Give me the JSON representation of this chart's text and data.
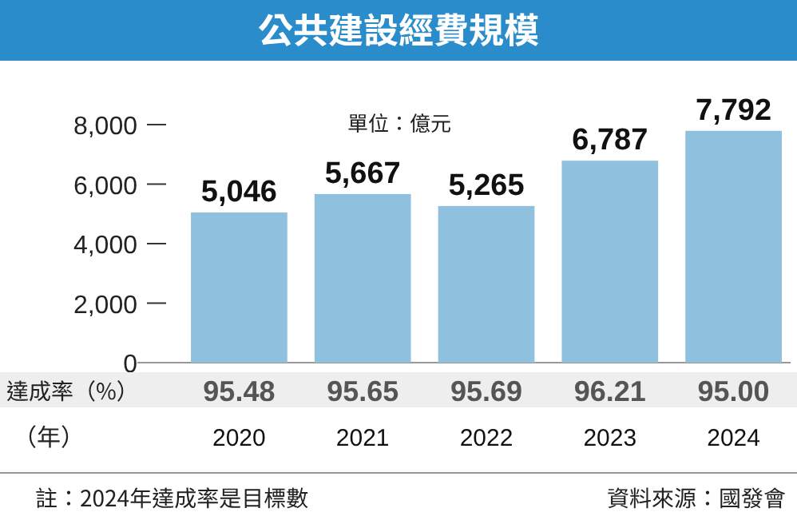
{
  "chart_data": {
    "type": "bar",
    "title": "公共建設經費規模",
    "subtitle": "單位：億元",
    "xlabel": "（年）",
    "categories": [
      "2020",
      "2021",
      "2022",
      "2023",
      "2024"
    ],
    "values": [
      5046,
      5667,
      5265,
      6787,
      7792
    ],
    "value_labels": [
      "5,046",
      "5,667",
      "5,265",
      "6,787",
      "7,792"
    ],
    "color": "#8fc1de",
    "ylim": [
      0,
      8000
    ],
    "yticks": [
      0,
      {
        "value": 2000,
        "label": "2,000"
      },
      {
        "value": 4000,
        "label": "4,000"
      },
      {
        "value": 6000,
        "label": "6,000"
      },
      {
        "value": 8000,
        "label": "8,000"
      }
    ],
    "annotations": [
      "達成率（%）",
      "95.48",
      "95.65",
      "95.69",
      "96.21",
      "95.00",
      "註：2024年達成率是目標數",
      "資料來源：國發會"
    ]
  }
}
